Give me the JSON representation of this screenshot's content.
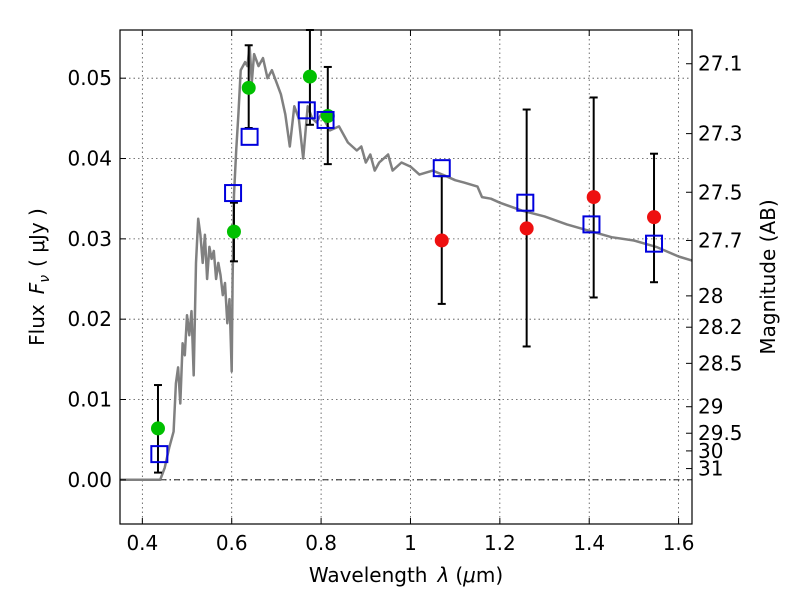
{
  "chart_data": {
    "type": "scatter",
    "xlabel": {
      "prefix": "Wavelength",
      "symbol": "λ",
      "unit_open": "(",
      "unit_mu": "μ",
      "unit_rest": "m)"
    },
    "ylabel": {
      "prefix": "Flux",
      "symbol": "F",
      "subscript": "ν",
      "unit": "( μJy )"
    },
    "y2label": "Magnitude (AB)",
    "xlim": [
      0.35,
      1.63
    ],
    "ylim": [
      -0.0055,
      0.056
    ],
    "grid": true,
    "x_ticks": [
      {
        "v": 0.4,
        "label": "0.4"
      },
      {
        "v": 0.6,
        "label": "0.6"
      },
      {
        "v": 0.8,
        "label": "0.8"
      },
      {
        "v": 1.0,
        "label": "1"
      },
      {
        "v": 1.2,
        "label": "1.2"
      },
      {
        "v": 1.4,
        "label": "1.4"
      },
      {
        "v": 1.6,
        "label": "1.6"
      }
    ],
    "y_ticks": [
      {
        "v": 0.0,
        "label": "0.00"
      },
      {
        "v": 0.01,
        "label": "0.01"
      },
      {
        "v": 0.02,
        "label": "0.02"
      },
      {
        "v": 0.03,
        "label": "0.03"
      },
      {
        "v": 0.04,
        "label": "0.04"
      },
      {
        "v": 0.05,
        "label": "0.05"
      }
    ],
    "mag_ticks": [
      {
        "flux": 0.0518,
        "label": "27.1"
      },
      {
        "flux": 0.0431,
        "label": "27.3"
      },
      {
        "flux": 0.0358,
        "label": "27.5"
      },
      {
        "flux": 0.0298,
        "label": "27.7"
      },
      {
        "flux": 0.0229,
        "label": "28"
      },
      {
        "flux": 0.019,
        "label": "28.2"
      },
      {
        "flux": 0.0145,
        "label": "28.5"
      },
      {
        "flux": 0.0091,
        "label": "29"
      },
      {
        "flux": 0.0058,
        "label": "29.5"
      },
      {
        "flux": 0.0036,
        "label": "30"
      },
      {
        "flux": 0.0014,
        "label": "31"
      }
    ],
    "series": [
      {
        "kind": "line",
        "color": "#808080",
        "points": [
          [
            0.35,
            0.0
          ],
          [
            0.44,
            0.0
          ],
          [
            0.45,
            0.0015
          ],
          [
            0.46,
            0.004
          ],
          [
            0.47,
            0.006
          ],
          [
            0.475,
            0.012
          ],
          [
            0.48,
            0.014
          ],
          [
            0.485,
            0.0095
          ],
          [
            0.49,
            0.017
          ],
          [
            0.495,
            0.0155
          ],
          [
            0.5,
            0.0205
          ],
          [
            0.505,
            0.018
          ],
          [
            0.51,
            0.021
          ],
          [
            0.515,
            0.013
          ],
          [
            0.52,
            0.027
          ],
          [
            0.525,
            0.0325
          ],
          [
            0.53,
            0.0305
          ],
          [
            0.535,
            0.027
          ],
          [
            0.54,
            0.0305
          ],
          [
            0.545,
            0.025
          ],
          [
            0.55,
            0.029
          ],
          [
            0.555,
            0.0275
          ],
          [
            0.56,
            0.0285
          ],
          [
            0.565,
            0.025
          ],
          [
            0.57,
            0.027
          ],
          [
            0.575,
            0.0255
          ],
          [
            0.58,
            0.023
          ],
          [
            0.585,
            0.0245
          ],
          [
            0.59,
            0.0195
          ],
          [
            0.595,
            0.0225
          ],
          [
            0.6,
            0.0135
          ],
          [
            0.602,
            0.025
          ],
          [
            0.605,
            0.0355
          ],
          [
            0.61,
            0.041
          ],
          [
            0.615,
            0.0455
          ],
          [
            0.62,
            0.051
          ],
          [
            0.63,
            0.052
          ],
          [
            0.635,
            0.0515
          ],
          [
            0.64,
            0.054
          ],
          [
            0.645,
            0.0495
          ],
          [
            0.65,
            0.053
          ],
          [
            0.66,
            0.0515
          ],
          [
            0.67,
            0.0525
          ],
          [
            0.68,
            0.05
          ],
          [
            0.69,
            0.051
          ],
          [
            0.7,
            0.0495
          ],
          [
            0.71,
            0.048
          ],
          [
            0.72,
            0.0455
          ],
          [
            0.73,
            0.0415
          ],
          [
            0.74,
            0.0465
          ],
          [
            0.75,
            0.045
          ],
          [
            0.76,
            0.04
          ],
          [
            0.77,
            0.0465
          ],
          [
            0.78,
            0.045
          ],
          [
            0.79,
            0.0445
          ],
          [
            0.8,
            0.0455
          ],
          [
            0.82,
            0.0435
          ],
          [
            0.84,
            0.044
          ],
          [
            0.86,
            0.042
          ],
          [
            0.88,
            0.041
          ],
          [
            0.89,
            0.0415
          ],
          [
            0.9,
            0.0395
          ],
          [
            0.91,
            0.0405
          ],
          [
            0.92,
            0.0385
          ],
          [
            0.93,
            0.0395
          ],
          [
            0.95,
            0.0405
          ],
          [
            0.96,
            0.0385
          ],
          [
            0.98,
            0.0395
          ],
          [
            1.0,
            0.039
          ],
          [
            1.02,
            0.038
          ],
          [
            1.05,
            0.0385
          ],
          [
            1.08,
            0.0378
          ],
          [
            1.1,
            0.0373
          ],
          [
            1.12,
            0.037
          ],
          [
            1.15,
            0.0365
          ],
          [
            1.16,
            0.0352
          ],
          [
            1.18,
            0.035
          ],
          [
            1.2,
            0.0345
          ],
          [
            1.25,
            0.0335
          ],
          [
            1.3,
            0.0328
          ],
          [
            1.35,
            0.0318
          ],
          [
            1.4,
            0.031
          ],
          [
            1.45,
            0.0302
          ],
          [
            1.5,
            0.0298
          ],
          [
            1.55,
            0.029
          ],
          [
            1.6,
            0.0278
          ],
          [
            1.63,
            0.0273
          ]
        ]
      },
      {
        "kind": "marker",
        "marker": "circle",
        "color": "#00c000",
        "points": [
          [
            0.435,
            0.0064
          ],
          [
            0.605,
            0.0309
          ],
          [
            0.638,
            0.0488
          ],
          [
            0.775,
            0.0502
          ],
          [
            0.815,
            0.0453
          ]
        ]
      },
      {
        "kind": "marker",
        "marker": "circle",
        "color": "#ee1010",
        "points": [
          [
            1.07,
            0.0298
          ],
          [
            1.26,
            0.0313
          ],
          [
            1.41,
            0.0352
          ],
          [
            1.545,
            0.0327
          ]
        ]
      },
      {
        "kind": "marker",
        "marker": "square",
        "color": "#0000dd",
        "points": [
          [
            0.438,
            0.0032
          ],
          [
            0.603,
            0.0357
          ],
          [
            0.64,
            0.0427
          ],
          [
            0.768,
            0.046
          ],
          [
            0.81,
            0.0448
          ],
          [
            1.07,
            0.0388
          ],
          [
            1.257,
            0.0345
          ],
          [
            1.405,
            0.0318
          ],
          [
            1.545,
            0.0294
          ]
        ]
      },
      {
        "kind": "errorbar",
        "color": "#000000",
        "bars": [
          [
            0.435,
            0.0009,
            0.0118
          ],
          [
            0.605,
            0.0272,
            0.0345
          ],
          [
            0.638,
            0.0438,
            0.0541
          ],
          [
            0.775,
            0.0442,
            0.056
          ],
          [
            0.815,
            0.0393,
            0.0514
          ],
          [
            1.07,
            0.0219,
            0.0378
          ],
          [
            1.26,
            0.0166,
            0.0461
          ],
          [
            1.41,
            0.0227,
            0.0476
          ],
          [
            1.545,
            0.0246,
            0.0406
          ]
        ]
      }
    ]
  }
}
